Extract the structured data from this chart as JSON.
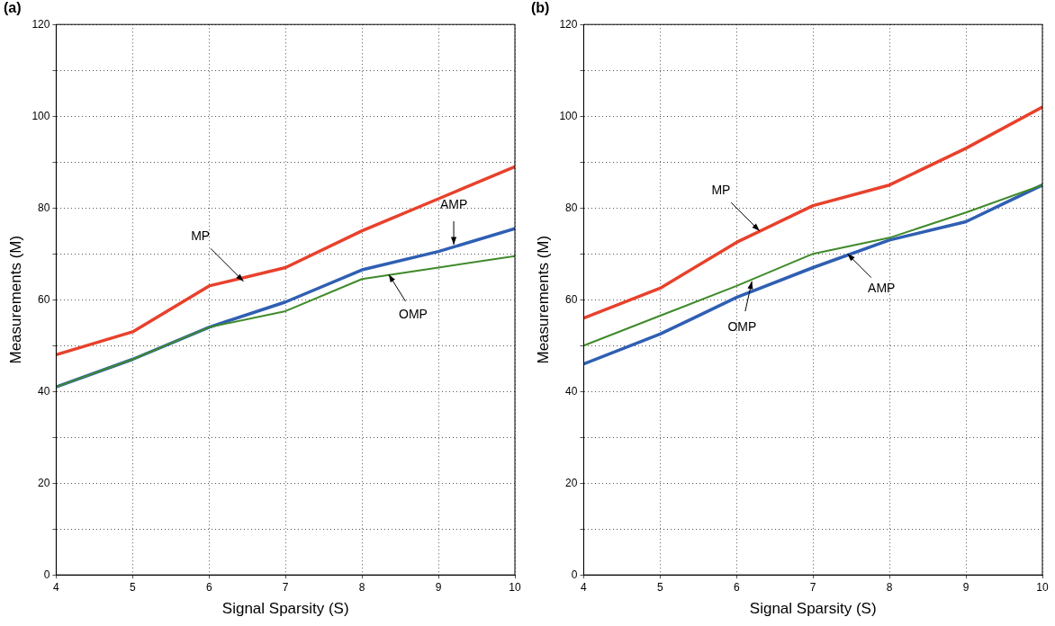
{
  "chart_data": [
    {
      "type": "line",
      "title": "(a)",
      "xlabel": "Signal Sparsity (S)",
      "ylabel": "Measurements (M)",
      "x": [
        4,
        5,
        6,
        7,
        8,
        9,
        10
      ],
      "series": [
        {
          "color": "#e8412c",
          "values": [
            48,
            53,
            63,
            67,
            75,
            82,
            89
          ]
        },
        {
          "color": "#2f5fb3",
          "values": [
            41,
            47,
            54,
            59.5,
            66.5,
            70.5,
            75.5
          ]
        },
        {
          "color": "#3f8a2a",
          "values": [
            41,
            47,
            54,
            57.5,
            64.5,
            67,
            69.5
          ]
        }
      ],
      "xlim": [
        4,
        10
      ],
      "xticks": [
        4,
        5,
        6,
        7,
        8,
        9,
        10
      ],
      "ylim": [
        0,
        120
      ],
      "yticks": [
        0,
        {
          "value": 10,
          "label": null
        },
        20,
        {
          "value": 30,
          "label": null
        },
        40,
        {
          "value": 50,
          "label": null
        },
        60,
        {
          "value": 70,
          "label": null
        },
        80,
        {
          "value": 90,
          "label": null
        },
        100,
        {
          "value": 110,
          "label": null
        },
        120
      ],
      "grid": true,
      "legend": false,
      "marker": "none",
      "line_style": "solid",
      "annotations": [
        {
          "text": "MP",
          "x": 6.45,
          "y": 64
        },
        {
          "text": "AMP",
          "x": 9.2,
          "y": 72
        },
        {
          "text": "OMP",
          "x": 8.35,
          "y": 65.5
        }
      ]
    },
    {
      "type": "line",
      "title": "(b)",
      "xlabel": "Signal Sparsity (S)",
      "ylabel": "Measurements (M)",
      "x": [
        4,
        5,
        6,
        7,
        8,
        9,
        10
      ],
      "series": [
        {
          "color": "#e8412c",
          "values": [
            56,
            62.5,
            72.5,
            80.5,
            85,
            93,
            102
          ]
        },
        {
          "color": "#2f5fb3",
          "values": [
            46,
            52.5,
            60.5,
            67,
            73,
            77,
            85
          ]
        },
        {
          "color": "#3f8a2a",
          "values": [
            50,
            56.5,
            63,
            70,
            73.5,
            79,
            85
          ]
        }
      ],
      "xlim": [
        4,
        10
      ],
      "xticks": [
        4,
        5,
        6,
        7,
        8,
        9,
        10
      ],
      "ylim": [
        0,
        120
      ],
      "yticks": [
        0,
        {
          "value": 10,
          "label": null
        },
        20,
        {
          "value": 30,
          "label": null
        },
        40,
        {
          "value": 50,
          "label": null
        },
        60,
        {
          "value": 70,
          "label": null
        },
        80,
        {
          "value": 90,
          "label": null
        },
        100,
        {
          "value": 110,
          "label": null
        },
        120
      ],
      "grid": true,
      "legend": false,
      "marker": "none",
      "line_style": "solid",
      "annotations": [
        {
          "text": "MP",
          "x": 6.3,
          "y": 75
        },
        {
          "text": "AMP",
          "x": 7.45,
          "y": 70
        },
        {
          "text": "OMP",
          "x": 6.2,
          "y": 64
        }
      ]
    }
  ]
}
